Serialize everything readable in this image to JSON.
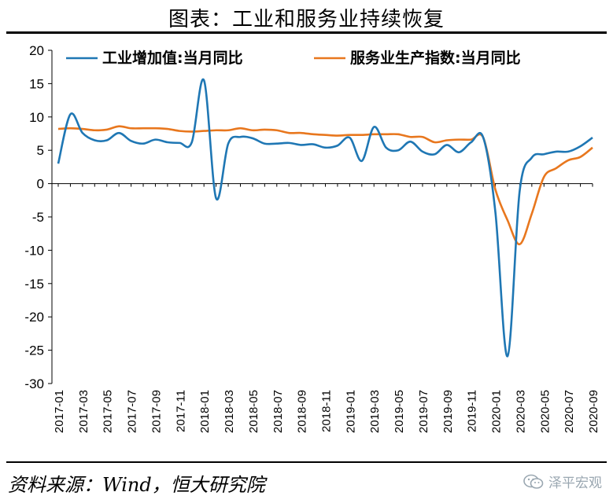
{
  "title": "图表：工业和服务业持续恢复",
  "source": "资料来源：Wind，恒大研究院",
  "watermark": {
    "text": "泽平宏观",
    "icon": "wechat-icon"
  },
  "chart_data": {
    "type": "line",
    "title": "",
    "xlabel": "",
    "ylabel": "",
    "ylim": [
      -30,
      20
    ],
    "yticks": [
      20,
      15,
      10,
      5,
      0,
      -5,
      -10,
      -15,
      -20,
      -25,
      -30
    ],
    "grid": false,
    "legend": "top",
    "x": [
      "2017-01",
      "2017-02",
      "2017-03",
      "2017-04",
      "2017-05",
      "2017-06",
      "2017-07",
      "2017-08",
      "2017-09",
      "2017-10",
      "2017-11",
      "2017-12",
      "2018-01",
      "2018-02",
      "2018-03",
      "2018-04",
      "2018-05",
      "2018-06",
      "2018-07",
      "2018-08",
      "2018-09",
      "2018-10",
      "2018-11",
      "2018-12",
      "2019-01",
      "2019-02",
      "2019-03",
      "2019-04",
      "2019-05",
      "2019-06",
      "2019-07",
      "2019-08",
      "2019-09",
      "2019-10",
      "2019-11",
      "2019-12",
      "2020-01",
      "2020-02",
      "2020-03",
      "2020-04",
      "2020-05",
      "2020-06",
      "2020-07",
      "2020-08",
      "2020-09"
    ],
    "tick_labels": [
      "2017-01",
      "2017-03",
      "2017-05",
      "2017-07",
      "2017-09",
      "2017-11",
      "2018-01",
      "2018-03",
      "2018-05",
      "2018-07",
      "2018-09",
      "2018-11",
      "2019-01",
      "2019-03",
      "2019-05",
      "2019-07",
      "2019-09",
      "2019-11",
      "2020-01",
      "2020-03",
      "2020-05",
      "2020-07",
      "2020-09"
    ],
    "series": [
      {
        "name": "工业增加值:当月同比",
        "color": "#1f77b4",
        "values": [
          3.0,
          10.4,
          7.6,
          6.5,
          6.5,
          7.6,
          6.4,
          6.0,
          6.6,
          6.2,
          6.1,
          6.2,
          15.5,
          -2.2,
          6.0,
          7.0,
          6.8,
          6.0,
          6.0,
          6.1,
          5.8,
          5.9,
          5.4,
          5.7,
          6.9,
          3.4,
          8.5,
          5.4,
          5.0,
          6.3,
          4.8,
          4.4,
          5.8,
          4.7,
          6.2,
          6.9,
          -4.3,
          -25.9,
          -1.1,
          3.9,
          4.4,
          4.8,
          4.8,
          5.6,
          6.9
        ]
      },
      {
        "name": "服务业生产指数:当月同比",
        "color": "#e8771e",
        "values": [
          8.2,
          8.3,
          8.2,
          8.0,
          8.1,
          8.6,
          8.3,
          8.3,
          8.3,
          8.2,
          7.9,
          7.8,
          7.9,
          8.0,
          8.0,
          8.3,
          8.0,
          8.1,
          8.0,
          7.6,
          7.6,
          7.4,
          7.3,
          7.2,
          7.3,
          7.3,
          7.4,
          7.4,
          7.4,
          7.0,
          7.0,
          6.2,
          6.5,
          6.6,
          6.6,
          6.9,
          -0.9,
          -5.5,
          -9.1,
          -4.5,
          1.0,
          2.3,
          3.5,
          4.0,
          5.4
        ]
      }
    ]
  }
}
